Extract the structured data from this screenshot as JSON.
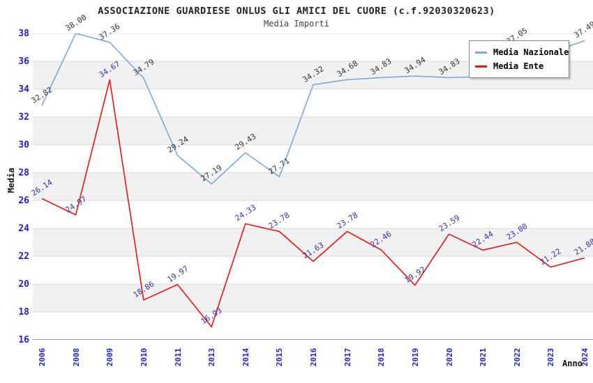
{
  "title": "ASSOCIAZIONE GUARDIESE ONLUS GLI AMICI DEL CUORE (c.f.92030320623)",
  "subtitle": "Media Importi",
  "axis": {
    "y_title": "Media",
    "x_title": "Anno"
  },
  "legend": {
    "items": [
      {
        "label": "Media Nazionale",
        "color": "#79a9dc"
      },
      {
        "label": "Media Ente",
        "color": "#ee1111"
      }
    ]
  },
  "colors": {
    "tick_label": "#2222cc",
    "band_gray": "#f1f1f1",
    "gridline": "#d9d9d9",
    "axis_line": "#777777",
    "nazionale_line": "#79a9dc",
    "nazionale_label": "#333333",
    "ente_line": "#ee1111",
    "ente_label": "#3333aa"
  },
  "chart_data": {
    "type": "line",
    "categories": [
      "2006",
      "2008",
      "2009",
      "2010",
      "2011",
      "2013",
      "2014",
      "2015",
      "2016",
      "2017",
      "2018",
      "2019",
      "2020",
      "2021",
      "2022",
      "2023",
      "2024"
    ],
    "series": [
      {
        "name": "Media Nazionale",
        "color": "#79a9dc",
        "label_color": "#333333",
        "values": [
          32.82,
          38.0,
          37.36,
          34.79,
          29.24,
          27.19,
          29.43,
          27.71,
          34.32,
          34.68,
          34.83,
          34.94,
          34.83,
          34.9,
          37.05,
          36.6,
          37.49
        ],
        "labels": [
          "32.82",
          "38.00",
          "37.36",
          "34.79",
          "29.24",
          "27.19",
          "29.43",
          "27.71",
          "34.32",
          "34.68",
          "34.83",
          "34.94",
          "34.83",
          "",
          "37.05",
          "",
          "37.49"
        ],
        "note": "values at 2021 and 2023 estimated; their labels are hidden behind the legend box"
      },
      {
        "name": "Media Ente",
        "color": "#ee1111",
        "label_color": "#3333aa",
        "values": [
          26.14,
          24.97,
          34.67,
          18.86,
          19.97,
          16.93,
          24.33,
          23.78,
          21.63,
          23.78,
          22.46,
          19.92,
          23.59,
          22.44,
          23.0,
          21.22,
          21.88
        ],
        "labels": [
          "26.14",
          "24.97",
          "34.67",
          "18.86",
          "19.97",
          "16.93",
          "24.33",
          "23.78",
          "21.63",
          "23.78",
          "22.46",
          "19.92",
          "23.59",
          "22.44",
          "23.00",
          "21.22",
          "21.88"
        ]
      }
    ],
    "xlabel": "Anno",
    "ylabel": "Media",
    "ylim": [
      16,
      38
    ],
    "ytick_step": 2,
    "y_ticks": [
      38,
      36,
      34,
      32,
      30,
      28,
      26,
      24,
      22,
      20,
      18,
      16
    ],
    "grid": "horizontal, alternating gray bands every 2 units",
    "legend_position": "top-right"
  }
}
